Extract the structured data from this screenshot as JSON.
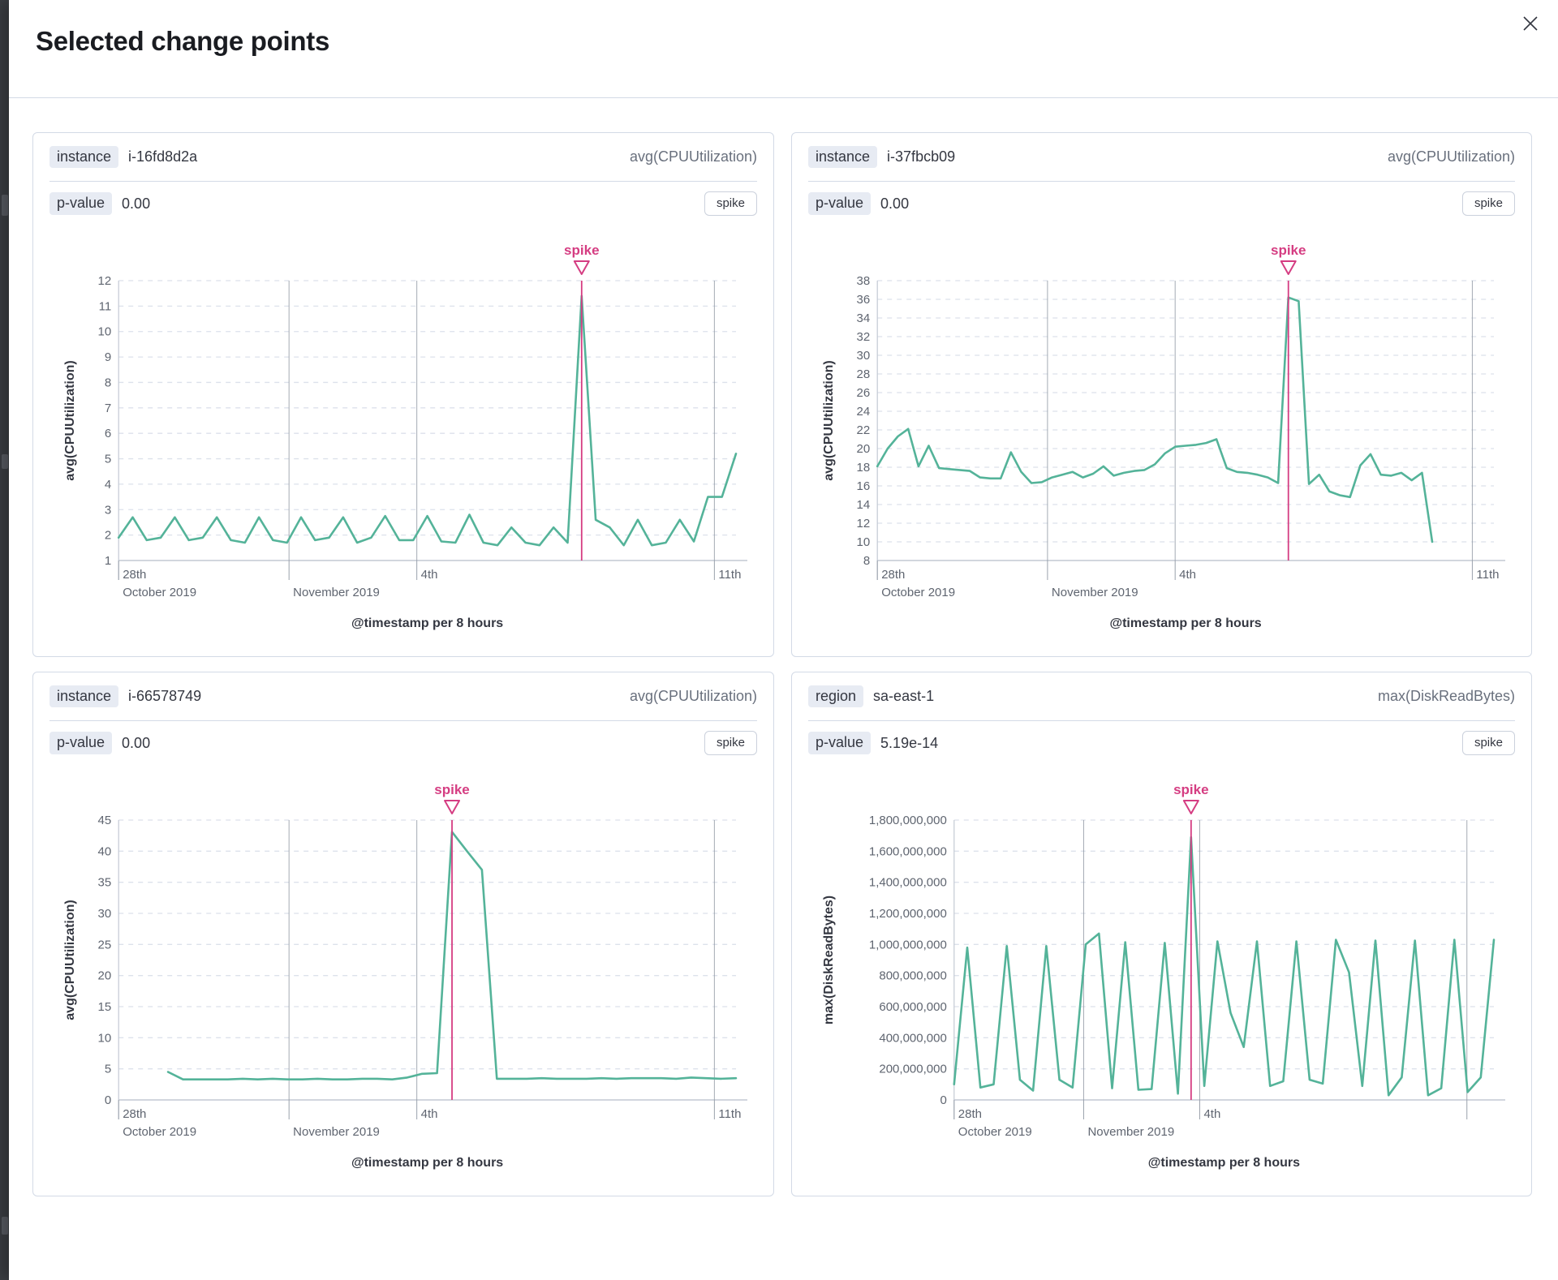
{
  "overlay": {
    "title": "Selected change points"
  },
  "panels": [
    {
      "field_label": "instance",
      "field_value": "i-16fd8d2a",
      "metric": "avg(CPUUtilization)",
      "p_label": "p-value",
      "p_value": "0.00",
      "type_label": "spike"
    },
    {
      "field_label": "instance",
      "field_value": "i-37fbcb09",
      "metric": "avg(CPUUtilization)",
      "p_label": "p-value",
      "p_value": "0.00",
      "type_label": "spike"
    },
    {
      "field_label": "instance",
      "field_value": "i-66578749",
      "metric": "avg(CPUUtilization)",
      "p_label": "p-value",
      "p_value": "0.00",
      "type_label": "spike"
    },
    {
      "field_label": "region",
      "field_value": "sa-east-1",
      "metric": "max(DiskReadBytes)",
      "p_label": "p-value",
      "p_value": "5.19e-14",
      "type_label": "spike"
    }
  ],
  "chart_data": [
    {
      "type": "line",
      "ylabel": "avg(CPUUtilization)",
      "xlabel": "@timestamp per 8 hours",
      "ylim": [
        1,
        12
      ],
      "y_tick_labels": [
        "12",
        "11",
        "10",
        "9",
        "8",
        "7",
        "6",
        "5",
        "4",
        "3",
        "2",
        "1"
      ],
      "x_ticks": [
        {
          "frac": 0,
          "line1": "28th",
          "line2": "October 2019"
        },
        {
          "frac": 0.276,
          "line1": "",
          "line2": "November 2019"
        },
        {
          "frac": 0.483,
          "line1": "4th",
          "line2": ""
        },
        {
          "frac": 0.965,
          "line1": "11th",
          "line2": ""
        }
      ],
      "annotation": {
        "label": "spike",
        "index": 33,
        "value": 11.4
      },
      "series": {
        "name": "avg(CPUUtilization)",
        "x_start_frac": 0,
        "x_end_frac": 1,
        "values": [
          1.9,
          2.7,
          1.8,
          1.9,
          2.7,
          1.8,
          1.9,
          2.7,
          1.8,
          1.7,
          2.7,
          1.8,
          1.7,
          2.7,
          1.8,
          1.9,
          2.7,
          1.7,
          1.9,
          2.75,
          1.8,
          1.8,
          2.75,
          1.75,
          1.7,
          2.8,
          1.7,
          1.6,
          2.3,
          1.7,
          1.6,
          2.3,
          1.7,
          11.4,
          2.6,
          2.3,
          1.6,
          2.6,
          1.6,
          1.7,
          2.6,
          1.75,
          3.5,
          3.5,
          5.2
        ]
      },
      "colors": {
        "line": "#54b399",
        "annotation": "#d53d82"
      },
      "grid": true,
      "legend": false
    },
    {
      "type": "line",
      "ylabel": "avg(CPUUtilization)",
      "xlabel": "@timestamp per 8 hours",
      "ylim": [
        8,
        38
      ],
      "y_tick_labels": [
        "38",
        "36",
        "34",
        "32",
        "30",
        "28",
        "26",
        "24",
        "22",
        "20",
        "18",
        "16",
        "14",
        "12",
        "10",
        "8"
      ],
      "x_ticks": [
        {
          "frac": 0,
          "line1": "28th",
          "line2": "October 2019"
        },
        {
          "frac": 0.276,
          "line1": "",
          "line2": "November 2019"
        },
        {
          "frac": 0.483,
          "line1": "4th",
          "line2": ""
        },
        {
          "frac": 0.965,
          "line1": "11th",
          "line2": ""
        }
      ],
      "annotation": {
        "label": "spike",
        "index": 40,
        "value": 36.2
      },
      "series": {
        "name": "avg(CPUUtilization)",
        "x_start_frac": 0,
        "x_end_frac": 0.9,
        "values": [
          18.1,
          20.0,
          21.3,
          22.1,
          18.1,
          20.3,
          17.9,
          17.8,
          17.7,
          17.6,
          16.9,
          16.8,
          16.8,
          19.6,
          17.5,
          16.3,
          16.4,
          16.9,
          17.2,
          17.5,
          16.9,
          17.3,
          18.1,
          17.1,
          17.4,
          17.6,
          17.7,
          18.3,
          19.5,
          20.2,
          20.3,
          20.4,
          20.6,
          21.0,
          17.9,
          17.5,
          17.4,
          17.2,
          16.9,
          16.3,
          36.2,
          35.8,
          16.2,
          17.2,
          15.4,
          15.0,
          14.8,
          18.2,
          19.4,
          17.2,
          17.1,
          17.4,
          16.6,
          17.4,
          10.0
        ]
      },
      "colors": {
        "line": "#54b399",
        "annotation": "#d53d82"
      },
      "grid": true,
      "legend": false
    },
    {
      "type": "line",
      "ylabel": "avg(CPUUtilization)",
      "xlabel": "@timestamp per 8 hours",
      "ylim": [
        0,
        45
      ],
      "y_tick_labels": [
        "45",
        "40",
        "35",
        "30",
        "25",
        "20",
        "15",
        "10",
        "5",
        "0"
      ],
      "x_ticks": [
        {
          "frac": 0,
          "line1": "28th",
          "line2": "October 2019"
        },
        {
          "frac": 0.276,
          "line1": "",
          "line2": "November 2019"
        },
        {
          "frac": 0.483,
          "line1": "4th",
          "line2": ""
        },
        {
          "frac": 0.965,
          "line1": "11th",
          "line2": ""
        }
      ],
      "annotation": {
        "label": "spike",
        "index": 19,
        "value": 43.1
      },
      "series": {
        "name": "avg(CPUUtilization)",
        "x_start_frac": 0.08,
        "x_end_frac": 1,
        "values": [
          4.5,
          3.3,
          3.3,
          3.3,
          3.3,
          3.4,
          3.3,
          3.4,
          3.3,
          3.3,
          3.4,
          3.3,
          3.3,
          3.4,
          3.4,
          3.3,
          3.6,
          4.2,
          4.3,
          43.1,
          40.0,
          37.0,
          3.4,
          3.4,
          3.4,
          3.5,
          3.4,
          3.4,
          3.4,
          3.5,
          3.4,
          3.5,
          3.5,
          3.5,
          3.4,
          3.6,
          3.5,
          3.4,
          3.5
        ]
      },
      "colors": {
        "line": "#54b399",
        "annotation": "#d53d82"
      },
      "grid": true,
      "legend": false
    },
    {
      "type": "line",
      "ylabel": "max(DiskReadBytes)",
      "xlabel": "@timestamp per 8 hours",
      "ylim": [
        0,
        1800000000
      ],
      "y_tick_labels": [
        "1,800,000,000",
        "1,600,000,000",
        "1,400,000,000",
        "1,200,000,000",
        "1,000,000,000",
        "800,000,000",
        "600,000,000",
        "400,000,000",
        "200,000,000",
        "0"
      ],
      "x_ticks": [
        {
          "frac": 0,
          "line1": "28th",
          "line2": "October 2019"
        },
        {
          "frac": 0.24,
          "line1": "",
          "line2": "November 2019"
        },
        {
          "frac": 0.455,
          "line1": "4th",
          "line2": ""
        },
        {
          "frac": 0.95,
          "line1": "",
          "line2": ""
        }
      ],
      "annotation": {
        "label": "spike",
        "index": 18,
        "value": 1690000000
      },
      "series": {
        "name": "max(DiskReadBytes)",
        "x_start_frac": 0,
        "x_end_frac": 1,
        "values": [
          100000000,
          980000000,
          80000000,
          100000000,
          990000000,
          130000000,
          60000000,
          990000000,
          130000000,
          80000000,
          1000000000,
          1070000000,
          75000000,
          1015000000,
          65000000,
          70000000,
          1010000000,
          40000000,
          1690000000,
          90000000,
          1020000000,
          560000000,
          340000000,
          1020000000,
          90000000,
          120000000,
          1020000000,
          130000000,
          105000000,
          1030000000,
          820000000,
          90000000,
          1025000000,
          30000000,
          145000000,
          1025000000,
          30000000,
          75000000,
          1030000000,
          50000000,
          145000000,
          1030000000
        ]
      },
      "colors": {
        "line": "#54b399",
        "annotation": "#d53d82"
      },
      "grid": true,
      "legend": false
    }
  ]
}
